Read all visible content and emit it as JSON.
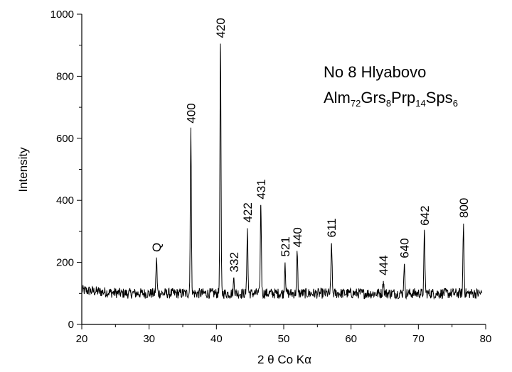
{
  "chart_data": {
    "type": "line",
    "xlabel": "2 θ Co Kα",
    "ylabel": "Intensity",
    "xlim": [
      20,
      80
    ],
    "ylim": [
      0,
      1000
    ],
    "x_ticks": [
      20,
      30,
      40,
      50,
      60,
      70,
      80
    ],
    "y_ticks": [
      0,
      200,
      400,
      600,
      800,
      1000
    ],
    "grid": false,
    "legend": "none",
    "annotation": {
      "line1": "No 8  Hlyabovo",
      "formula": [
        {
          "text": "Alm",
          "sub": "72"
        },
        {
          "text": "Grs",
          "sub": "8"
        },
        {
          "text": "Prp",
          "sub": "14"
        },
        {
          "text": "Sps",
          "sub": "6"
        }
      ]
    },
    "baseline": 100,
    "peaks": [
      {
        "label": "Q",
        "x": 31.1,
        "y": 215
      },
      {
        "label": "400",
        "x": 36.2,
        "y": 630
      },
      {
        "label": "420",
        "x": 40.6,
        "y": 905
      },
      {
        "label": "332",
        "x": 42.6,
        "y": 150
      },
      {
        "label": "422",
        "x": 44.6,
        "y": 310
      },
      {
        "label": "431",
        "x": 46.6,
        "y": 385
      },
      {
        "label": "521",
        "x": 50.2,
        "y": 200
      },
      {
        "label": "440",
        "x": 52.0,
        "y": 230
      },
      {
        "label": "611",
        "x": 57.1,
        "y": 262
      },
      {
        "label": "444",
        "x": 64.8,
        "y": 140
      },
      {
        "label": "640",
        "x": 67.9,
        "y": 195
      },
      {
        "label": "642",
        "x": 70.9,
        "y": 300
      },
      {
        "label": "800",
        "x": 76.7,
        "y": 325
      }
    ],
    "line_color": "#000000"
  }
}
